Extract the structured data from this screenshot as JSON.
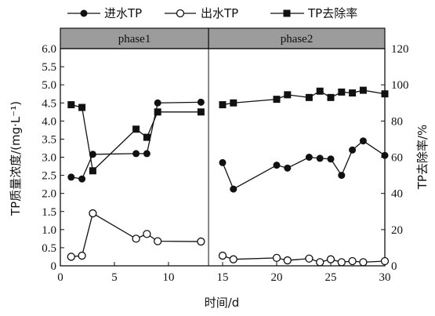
{
  "chart_data": {
    "type": "line",
    "xlabel": "时间/d",
    "ylabel_left": "TP质量浓度/(mg·L⁻¹)",
    "ylabel_right": "TP去除率/%",
    "xlim": [
      0,
      30
    ],
    "ylim_left": [
      0,
      6.0
    ],
    "ylim_right": [
      0,
      120
    ],
    "x_ticks": [
      "0",
      "5",
      "10",
      "15",
      "20",
      "25",
      "30"
    ],
    "y_left_ticks": [
      "0",
      "0.5",
      "1.0",
      "1.5",
      "2.0",
      "2.5",
      "3.0",
      "3.5",
      "4.0",
      "4.5",
      "5.0",
      "5.5",
      "6.0"
    ],
    "y_right_ticks": [
      "0",
      "20",
      "40",
      "60",
      "80",
      "100",
      "120"
    ],
    "legend_position": "top",
    "phases": [
      {
        "label": "phase1",
        "x_start": 0,
        "x_end": 13.7
      },
      {
        "label": "phase2",
        "x_start": 13.7,
        "x_end": 30
      }
    ],
    "series": [
      {
        "name": "进水TP",
        "axis": "left",
        "marker": "filled-circle",
        "segments": [
          [
            [
              1,
              2.45
            ],
            [
              2,
              2.4
            ],
            [
              3,
              3.08
            ],
            [
              7,
              3.1
            ],
            [
              8,
              3.1
            ],
            [
              9,
              4.5
            ],
            [
              13,
              4.52
            ]
          ],
          [
            [
              15,
              2.85
            ],
            [
              16,
              2.12
            ],
            [
              20,
              2.78
            ],
            [
              21,
              2.7
            ],
            [
              23,
              3.0
            ],
            [
              24,
              2.97
            ],
            [
              25,
              2.95
            ],
            [
              26,
              2.5
            ],
            [
              27,
              3.2
            ],
            [
              28,
              3.45
            ],
            [
              30,
              3.05
            ]
          ]
        ]
      },
      {
        "name": "出水TP",
        "axis": "left",
        "marker": "open-circle",
        "segments": [
          [
            [
              1,
              0.25
            ],
            [
              2,
              0.28
            ],
            [
              3,
              1.45
            ],
            [
              7,
              0.75
            ],
            [
              8,
              0.88
            ],
            [
              9,
              0.68
            ],
            [
              13,
              0.67
            ]
          ],
          [
            [
              15,
              0.28
            ],
            [
              16,
              0.18
            ],
            [
              20,
              0.22
            ],
            [
              21,
              0.15
            ],
            [
              23,
              0.2
            ],
            [
              24,
              0.1
            ],
            [
              25,
              0.18
            ],
            [
              26,
              0.1
            ],
            [
              27,
              0.13
            ],
            [
              28,
              0.1
            ],
            [
              30,
              0.13
            ]
          ]
        ]
      },
      {
        "name": "TP去除率",
        "axis": "right",
        "marker": "filled-square",
        "segments": [
          [
            [
              1,
              89
            ],
            [
              2,
              87.5
            ],
            [
              3,
              52.5
            ],
            [
              7,
              75.5
            ],
            [
              8,
              71
            ],
            [
              9,
              85
            ],
            [
              13,
              85
            ]
          ],
          [
            [
              15,
              89
            ],
            [
              16,
              90
            ],
            [
              20,
              92
            ],
            [
              21,
              94.5
            ],
            [
              23,
              93
            ],
            [
              24,
              96.5
            ],
            [
              25,
              93
            ],
            [
              26,
              96
            ],
            [
              27,
              95.5
            ],
            [
              28,
              97
            ],
            [
              30,
              95
            ]
          ]
        ]
      }
    ]
  }
}
